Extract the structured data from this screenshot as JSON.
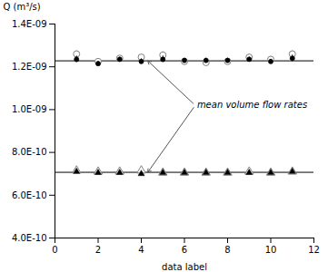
{
  "chart_data": {
    "type": "scatter",
    "xlabel": "data label",
    "ylabel": "Q (m³/s)",
    "x": [
      1,
      2,
      3,
      4,
      5,
      6,
      7,
      8,
      9,
      10,
      11
    ],
    "series": [
      {
        "marker": "open circle",
        "color": "#808080",
        "values": [
          1.26e-09,
          1.225e-09,
          1.24e-09,
          1.245e-09,
          1.255e-09,
          1.225e-09,
          1.22e-09,
          1.225e-09,
          1.245e-09,
          1.235e-09,
          1.26e-09
        ],
        "errors": [
          1.5e-11,
          1.2e-11,
          1.2e-11,
          1.5e-11,
          1.5e-11,
          1.2e-11,
          1.2e-11,
          1.2e-11,
          1.5e-11,
          1.2e-11,
          1.5e-11
        ]
      },
      {
        "marker": "circle",
        "color": "#000000",
        "values": [
          1.235e-09,
          1.215e-09,
          1.235e-09,
          1.225e-09,
          1.235e-09,
          1.23e-09,
          1.23e-09,
          1.23e-09,
          1.235e-09,
          1.225e-09,
          1.24e-09
        ],
        "errors": [
          1.5e-11,
          1e-11,
          1e-11,
          1.2e-11,
          1.5e-11,
          1e-11,
          1e-11,
          1e-11,
          1e-11,
          1e-11,
          1.5e-11
        ]
      },
      {
        "marker": "open triangle",
        "color": "#808080",
        "values": [
          7.15e-10,
          7.1e-10,
          7.1e-10,
          7.15e-10,
          7.05e-10,
          7.05e-10,
          7.05e-10,
          7.05e-10,
          7.1e-10,
          7.05e-10,
          7.1e-10
        ],
        "errors": [
          6e-12,
          5e-12,
          5e-12,
          6e-12,
          5e-12,
          5e-12,
          5e-12,
          5e-12,
          5e-12,
          5e-12,
          6e-12
        ]
      },
      {
        "marker": "triangle",
        "color": "#000000",
        "values": [
          7.1e-10,
          7.05e-10,
          7.05e-10,
          7e-10,
          7.05e-10,
          7.05e-10,
          7.05e-10,
          7.05e-10,
          7.05e-10,
          7.05e-10,
          7.1e-10
        ],
        "errors": [
          6e-12,
          5e-12,
          5e-12,
          6e-12,
          5e-12,
          5e-12,
          5e-12,
          5e-12,
          5e-12,
          5e-12,
          6e-12
        ]
      }
    ],
    "mean_lines": [
      1.228e-09,
      7.07e-10
    ],
    "annotations": [
      {
        "text": "mean volume flow rates",
        "x": 6.5,
        "y": 1.02e-09,
        "arrows_to": [
          [
            4.3,
            1.228e-09
          ],
          [
            4.3,
            7.07e-10
          ]
        ]
      }
    ],
    "xlim": [
      0,
      12
    ],
    "xticks": [
      0,
      2,
      4,
      6,
      8,
      10,
      12
    ],
    "ylim": [
      4e-10,
      1.4e-09
    ],
    "yticks": [
      {
        "value": 4e-10,
        "label": "4.0E-10"
      },
      {
        "value": 6e-10,
        "label": "6.0E-10"
      },
      {
        "value": 8e-10,
        "label": "8.0E-10"
      },
      {
        "value": 1e-09,
        "label": "1.0E-09"
      },
      {
        "value": 1.2e-09,
        "label": "1.2E-09"
      },
      {
        "value": 1.4e-09,
        "label": "1.4E-09"
      }
    ],
    "grid": false
  }
}
